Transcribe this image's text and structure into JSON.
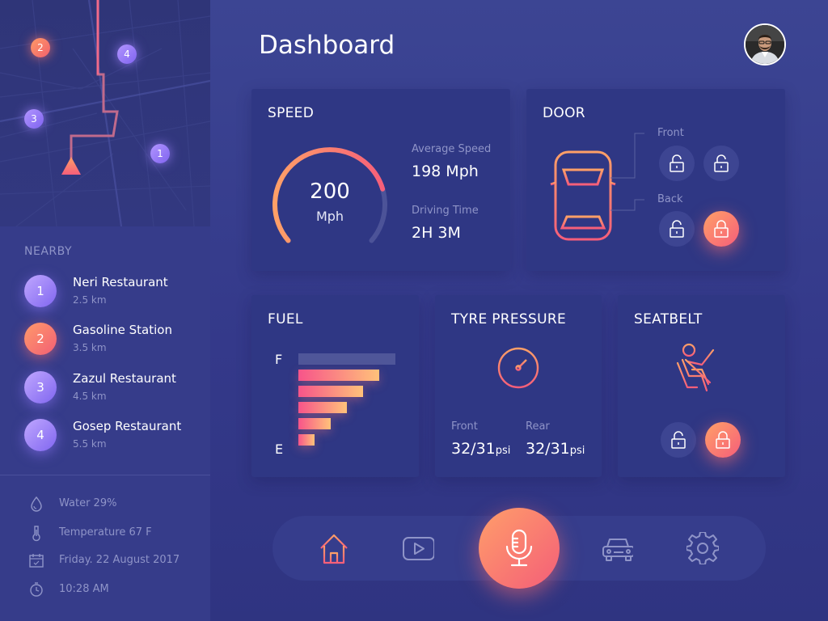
{
  "header": {
    "title": "Dashboard"
  },
  "map": {
    "pins": [
      {
        "label": "2",
        "color": "orange"
      },
      {
        "label": "4",
        "color": "purple"
      },
      {
        "label": "3",
        "color": "purple"
      },
      {
        "label": "1",
        "color": "purple"
      }
    ],
    "current_location_icon": "triangle-location-icon"
  },
  "nearby": {
    "title": "NEARBY",
    "items": [
      {
        "number": "1",
        "name": "Neri Restaurant",
        "distance": "2.5 km",
        "color": "purple"
      },
      {
        "number": "2",
        "name": "Gasoline Station",
        "distance": "3.5 km",
        "color": "orange"
      },
      {
        "number": "3",
        "name": "Zazul Restaurant",
        "distance": "4.5 km",
        "color": "purple"
      },
      {
        "number": "4",
        "name": "Gosep Restaurant",
        "distance": "5.5 km",
        "color": "purple"
      }
    ]
  },
  "status": {
    "water": {
      "icon": "water-drop-icon",
      "text": "Water 29%"
    },
    "temperature": {
      "icon": "thermometer-icon",
      "text": "Temperature 67 F"
    },
    "date": {
      "icon": "calendar-icon",
      "text": "Friday. 22 August 2017"
    },
    "time": {
      "icon": "clock-icon",
      "text": "10:28 AM"
    }
  },
  "speed": {
    "title": "SPEED",
    "value": "200",
    "unit": "Mph",
    "gauge_fraction": 0.78,
    "average_label": "Average Speed",
    "average_value": "198 Mph",
    "driving_label": "Driving Time",
    "driving_value": "2H 3M"
  },
  "door": {
    "title": "DOOR",
    "front_label": "Front",
    "back_label": "Back",
    "locks": [
      {
        "position": "front-left",
        "locked": false
      },
      {
        "position": "front-right",
        "locked": false
      },
      {
        "position": "back-left",
        "locked": false
      },
      {
        "position": "back-right",
        "locked": true
      }
    ]
  },
  "fuel": {
    "title": "FUEL",
    "full_label": "F",
    "empty_label": "E",
    "level_bars": 5,
    "total_bars": 6
  },
  "tyre": {
    "title": "TYRE PRESSURE",
    "front_label": "Front",
    "front_value": "32/31",
    "rear_label": "Rear",
    "rear_value": "32/31",
    "unit": "psi"
  },
  "seatbelt": {
    "title": "SEATBELT",
    "locks": [
      {
        "locked": false
      },
      {
        "locked": true
      }
    ]
  },
  "nav": {
    "items": [
      {
        "name": "home",
        "icon": "home-icon",
        "active": true
      },
      {
        "name": "media",
        "icon": "play-icon",
        "active": false
      },
      {
        "name": "voice",
        "icon": "microphone-icon",
        "active": true
      },
      {
        "name": "car",
        "icon": "car-icon",
        "active": false
      },
      {
        "name": "settings",
        "icon": "gear-icon",
        "active": false
      }
    ]
  },
  "colors": {
    "background": "#363c8a",
    "card": "#2f3784",
    "accent_orange": "#ffa067",
    "accent_pink": "#f65e7a",
    "accent_purple": "#8066f0",
    "muted_text": "#8f94c8"
  }
}
